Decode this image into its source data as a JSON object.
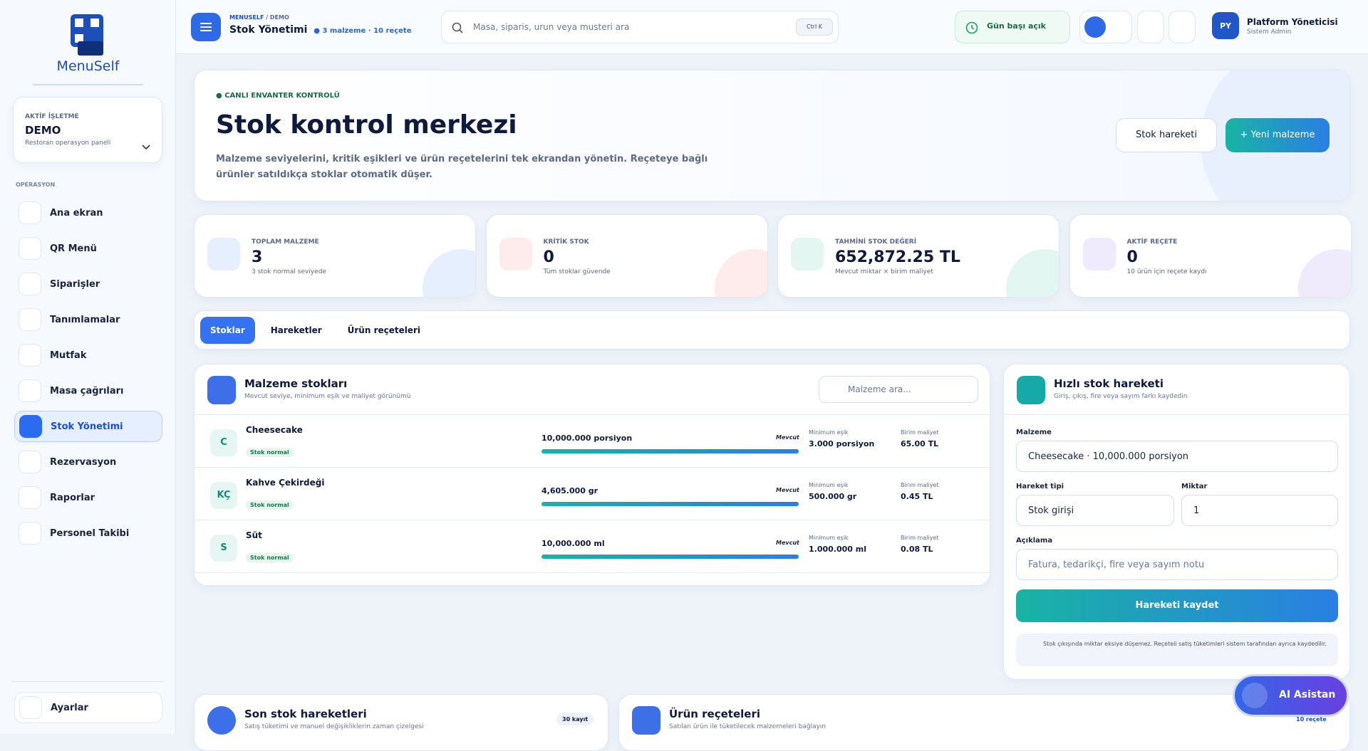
{
  "sidebar": {
    "brand": "MenuSelf",
    "business": {
      "label": "AKTİF İŞLETME",
      "name": "DEMO",
      "subtitle": "Restoran operasyon paneli"
    },
    "section": "OPERASYON",
    "nav": [
      "Ana ekran",
      "QR Menü",
      "Siparişler",
      "Tanımlamalar",
      "Mutfak",
      "Masa çağrıları",
      "Stok Yönetimi",
      "Rezervasyon",
      "Raporlar",
      "Personel Takibi"
    ],
    "settings": "Ayarlar"
  },
  "topbar": {
    "breadcrumb": [
      "MENUSELF",
      "/",
      "DEMO"
    ],
    "title": "Stok Yönetimi",
    "meta": "3 malzeme · 10 reçete",
    "search_placeholder": "Masa, siparis, urun veya musteri ara",
    "shortcut": "Ctrl K",
    "status": "Gün başı açık",
    "user": {
      "initials": "PY",
      "name": "Platform Yöneticisi",
      "role": "Sistem Admin"
    }
  },
  "hero": {
    "badge": "CANLI ENVANTER KONTROLÜ",
    "title": "Stok kontrol merkezi",
    "description": "Malzeme seviyelerini, kritik eşikleri ve ürün reçetelerini tek ekrandan yönetin. Reçeteye bağlı ürünler satıldıkça stoklar otomatik düşer.",
    "buttons": [
      "Stok hareketi",
      "Yeni malzeme"
    ]
  },
  "stats": [
    {
      "label": "TOPLAM MALZEME",
      "value": "3",
      "note": "3 stok normal seviyede"
    },
    {
      "label": "KRİTİK STOK",
      "value": "0",
      "note": "Tüm stoklar güvende"
    },
    {
      "label": "TAHMİNİ STOK DEĞERİ",
      "value": "652,872.25 TL",
      "note": "Mevcut miktar × birim maliyet"
    },
    {
      "label": "AKTİF REÇETE",
      "value": "0",
      "note": "10 ürün için reçete kaydı"
    }
  ],
  "tabs": [
    "Stoklar",
    "Hareketler",
    "Ürün reçeteleri"
  ],
  "stock_panel": {
    "title": "Malzeme stokları",
    "subtitle": "Mevcut seviye, minimum eşik ve maliyet görünümü",
    "search_placeholder": "Malzeme ara...",
    "items": [
      {
        "initial": "C",
        "name": "Cheesecake",
        "status": "Stok normal",
        "quantity": "10,000.000 porsiyon",
        "quantity_label": "Mevcut",
        "min_label": "Minimum eşik",
        "min": "3.000 porsiyon",
        "cost_label": "Birim maliyet",
        "cost": "65.00 TL"
      },
      {
        "initial": "KÇ",
        "name": "Kahve Çekirdeği",
        "status": "Stok normal",
        "quantity": "4,605.000 gr",
        "quantity_label": "Mevcut",
        "min_label": "Minimum eşik",
        "min": "500.000 gr",
        "cost_label": "Birim maliyet",
        "cost": "0.45 TL"
      },
      {
        "initial": "S",
        "name": "Süt",
        "status": "Stok normal",
        "quantity": "10,000.000 ml",
        "quantity_label": "Mevcut",
        "min_label": "Minimum eşik",
        "min": "1.000.000 ml",
        "cost_label": "Birim maliyet",
        "cost": "0.08 TL"
      }
    ]
  },
  "quick_panel": {
    "title": "Hızlı stok hareketi",
    "subtitle": "Giriş, çıkış, fire veya sayım farkı kaydedin",
    "material_label": "Malzeme",
    "material_value": "Cheesecake · 10,000.000 porsiyon",
    "type_label": "Hareket tipi",
    "type_value": "Stok girişi",
    "amount_label": "Miktar",
    "amount_value": "1",
    "note_label": "Açıklama",
    "note_placeholder": "Fatura, tedarikçi, fire veya sayım notu",
    "submit": "Hareketi kaydet",
    "info": "Stok çıkışında miktar eksiye düşemez. Reçeteli satış tüketimleri sistem tarafından ayrıca kaydedilir."
  },
  "movements_panel": {
    "title": "Son stok hareketleri",
    "subtitle": "Satış tüketimi ve manuel değişikliklerin zaman çizelgesi",
    "badge": "30 kayıt"
  },
  "recipes_panel": {
    "title": "Ürün reçeteleri",
    "subtitle": "Satılan ürün ile tüketilecek malzemeleri bağlayın",
    "badge": "10 reçete"
  },
  "assistant": "AI Asistan"
}
